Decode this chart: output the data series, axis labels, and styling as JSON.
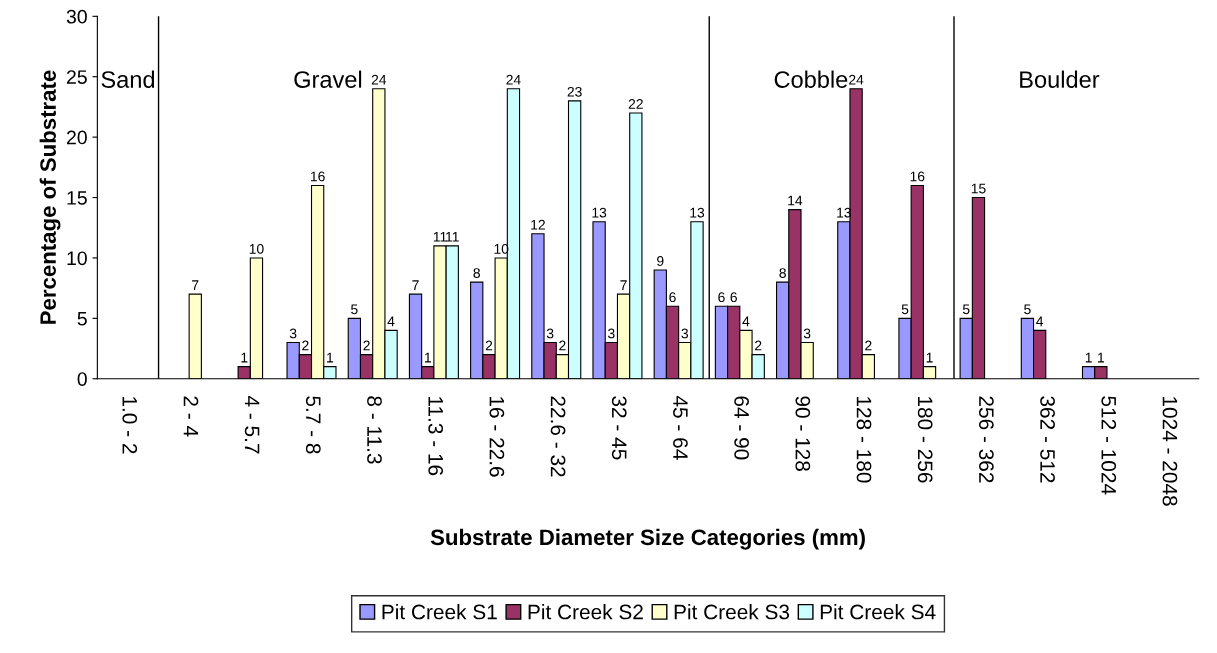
{
  "chart_data": {
    "type": "bar",
    "xlabel": "Substrate Diameter Size Categories (mm)",
    "ylabel": "Percentage of Substrate",
    "categories": [
      "1.0 - 2",
      "2 - 4",
      "4 - 5.7",
      "5.7 - 8",
      "8 - 11.3",
      "11.3 - 16",
      "16 - 22.6",
      "22.6 - 32",
      "32 - 45",
      "45 - 64",
      "64 - 90",
      "90 - 128",
      "128 - 180",
      "180 - 256",
      "256 - 362",
      "362 - 512",
      "512 - 1024",
      "1024 - 2048"
    ],
    "series": [
      {
        "name": "Pit Creek S1",
        "color": "#9999ff",
        "values": [
          null,
          null,
          null,
          3,
          5,
          7,
          8,
          12,
          13,
          9,
          6,
          8,
          13,
          5,
          5,
          5,
          1,
          null
        ]
      },
      {
        "name": "Pit Creek S2",
        "color": "#993366",
        "values": [
          null,
          null,
          1,
          2,
          2,
          1,
          2,
          3,
          3,
          6,
          6,
          14,
          24,
          16,
          15,
          4,
          1,
          null
        ]
      },
      {
        "name": "Pit Creek S3",
        "color": "#ffffcc",
        "values": [
          null,
          7,
          10,
          16,
          24,
          11,
          10,
          2,
          7,
          3,
          4,
          3,
          2,
          1,
          null,
          null,
          null,
          null
        ]
      },
      {
        "name": "Pit Creek S4",
        "color": "#ccffff",
        "values": [
          null,
          null,
          null,
          1,
          4,
          11,
          24,
          23,
          22,
          13,
          2,
          null,
          null,
          null,
          null,
          null,
          null,
          null
        ]
      }
    ],
    "ylim": [
      0,
      30
    ],
    "yticks": [
      0,
      5,
      10,
      15,
      20,
      25,
      30
    ],
    "annotations": [
      "Sand",
      "Gravel",
      "Cobble",
      "Boulder"
    ],
    "data_labels": true,
    "grid": false,
    "legend": "bottom"
  }
}
